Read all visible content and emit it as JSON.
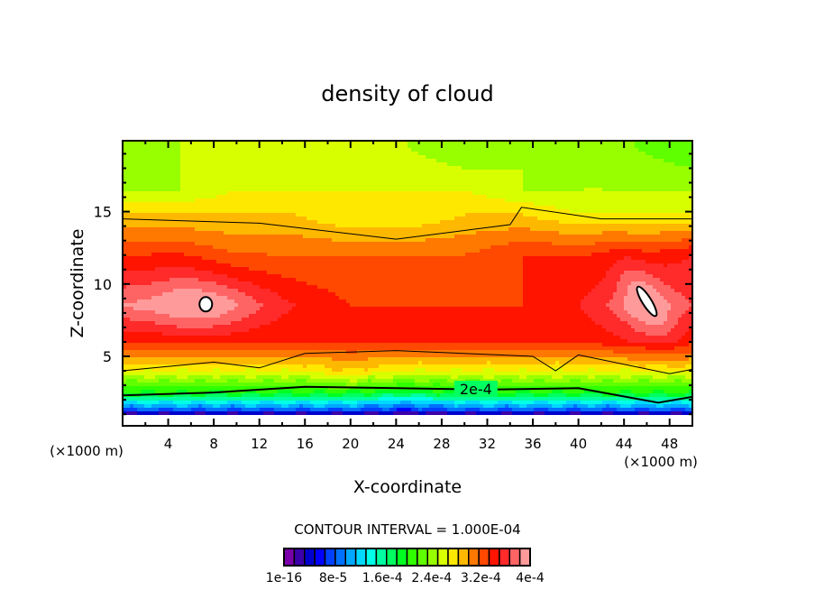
{
  "chart_data": {
    "type": "heatmap",
    "subtype": "filled-contour",
    "title": "density of cloud",
    "xlabel": "X-coordinate",
    "ylabel": "Z-coordinate",
    "x_unit_label": "(×1000 m)",
    "y_unit_label": "(×1000 m)",
    "xlim": [
      0,
      50
    ],
    "ylim": [
      0.2,
      19.9
    ],
    "x_ticks": [
      4,
      8,
      12,
      16,
      20,
      24,
      28,
      32,
      36,
      40,
      44,
      48
    ],
    "x_tick_labels": [
      "4",
      "8",
      "12",
      "16",
      "20",
      "24",
      "28",
      "32",
      "36",
      "40",
      "44",
      "48"
    ],
    "x_minor_step": 2,
    "y_ticks": [
      5,
      10,
      15
    ],
    "y_tick_labels": [
      "5",
      "10",
      "15"
    ],
    "y_minor_step": 1,
    "contour_interval_text": "CONTOUR INTERVAL = 1.000E-04",
    "contour_interval": 0.0001,
    "contour_label": "2e-4",
    "contour_label_value": 0.0002,
    "colorbar": {
      "levels": 24,
      "min": 1e-16,
      "max": 0.0004,
      "tick_labels": [
        "1e-16",
        "8e-5",
        "1.6e-4",
        "2.4e-4",
        "3.2e-4",
        "4e-4"
      ],
      "colors": [
        "#7a00aa",
        "#3c00aa",
        "#0000cc",
        "#0000ff",
        "#0040ff",
        "#0070ff",
        "#00a8ff",
        "#00d8ff",
        "#00ffe8",
        "#00ffa0",
        "#00ff60",
        "#00ff20",
        "#30ff00",
        "#60ff00",
        "#98ff00",
        "#d8ff00",
        "#ffe800",
        "#ffb800",
        "#ff7800",
        "#ff4800",
        "#ff1400",
        "#ff2a2a",
        "#ff6464",
        "#ff9a9a"
      ]
    },
    "field_description": "Cloud density is maximal (~3.5-4e-4) in a band from z~5 to z~13 km with peaks near x~7,z~8.5 and x~46,z~9; decreases upward to ~1.2-1.5e-4 at z~19 and sharply downward to ~0 below z~1 km.",
    "bands": [
      {
        "name": "top",
        "z": 19.5,
        "level_index_profile": [
          14,
          15,
          15,
          16,
          15,
          15,
          14,
          15,
          14,
          14,
          13
        ]
      },
      {
        "name": "upper",
        "z": 16.5,
        "level_index_profile": [
          15,
          15,
          16,
          16,
          16,
          16,
          16,
          15,
          15,
          15,
          15
        ]
      },
      {
        "name": "cap",
        "z": 14.8,
        "level_index_profile": [
          17,
          17,
          17,
          17,
          16,
          16,
          17,
          17,
          16,
          16,
          16
        ]
      },
      {
        "name": "mid-upper",
        "z": 12.0,
        "level_index_profile": [
          20,
          20,
          19,
          19,
          19,
          19,
          19,
          20,
          20,
          20,
          21
        ]
      },
      {
        "name": "core",
        "z": 8.5,
        "level_index_profile": [
          23,
          23,
          22,
          21,
          20,
          20,
          20,
          20,
          21,
          23,
          22
        ]
      },
      {
        "name": "lower-core",
        "z": 6.0,
        "level_index_profile": [
          20,
          20,
          20,
          20,
          20,
          20,
          20,
          20,
          20,
          21,
          20
        ]
      },
      {
        "name": "lower",
        "z": 4.0,
        "level_index_profile": [
          16,
          16,
          16,
          16,
          17,
          16,
          16,
          16,
          16,
          16,
          16
        ]
      },
      {
        "name": "base",
        "z": 2.5,
        "level_index_profile": [
          12,
          12,
          12,
          12,
          12,
          11,
          12,
          12,
          12,
          12,
          12
        ]
      },
      {
        "name": "bottom",
        "z": 1.3,
        "level_index_profile": [
          5,
          5,
          5,
          5,
          5,
          4,
          5,
          5,
          5,
          5,
          5
        ]
      }
    ],
    "highlighted_contours": [
      {
        "value": 0.0001,
        "approx_z_profile": [
          {
            "x": 0,
            "z": 14.5
          },
          {
            "x": 12,
            "z": 14.2
          },
          {
            "x": 24,
            "z": 13.1
          },
          {
            "x": 34,
            "z": 14.1
          },
          {
            "x": 35,
            "z": 15.3
          },
          {
            "x": 42,
            "z": 14.5
          },
          {
            "x": 50,
            "z": 14.5
          }
        ]
      },
      {
        "value": 0.0002,
        "approx_z_profile": [
          {
            "x": 0,
            "z": 2.3
          },
          {
            "x": 8,
            "z": 2.5
          },
          {
            "x": 16,
            "z": 2.9
          },
          {
            "x": 24,
            "z": 2.8
          },
          {
            "x": 32,
            "z": 2.7
          },
          {
            "x": 40,
            "z": 2.8
          },
          {
            "x": 47,
            "z": 1.8
          },
          {
            "x": 50,
            "z": 2.2
          }
        ]
      },
      {
        "value": 0.0003,
        "approx_z_profile": [
          {
            "x": 0,
            "z": 4.0
          },
          {
            "x": 8,
            "z": 4.6
          },
          {
            "x": 12,
            "z": 4.2
          },
          {
            "x": 16,
            "z": 5.2
          },
          {
            "x": 24,
            "z": 5.4
          },
          {
            "x": 36,
            "z": 5.0
          },
          {
            "x": 38,
            "z": 4.0
          },
          {
            "x": 40,
            "z": 5.1
          },
          {
            "x": 48,
            "z": 3.8
          },
          {
            "x": 50,
            "z": 4.1
          }
        ]
      },
      {
        "value": 0.0004,
        "regions": [
          {
            "x": 7.3,
            "z": 8.6,
            "shape": "ellipse"
          },
          {
            "x": 46,
            "z": 8.8,
            "shape": "elongated-diagonal"
          }
        ]
      }
    ]
  }
}
